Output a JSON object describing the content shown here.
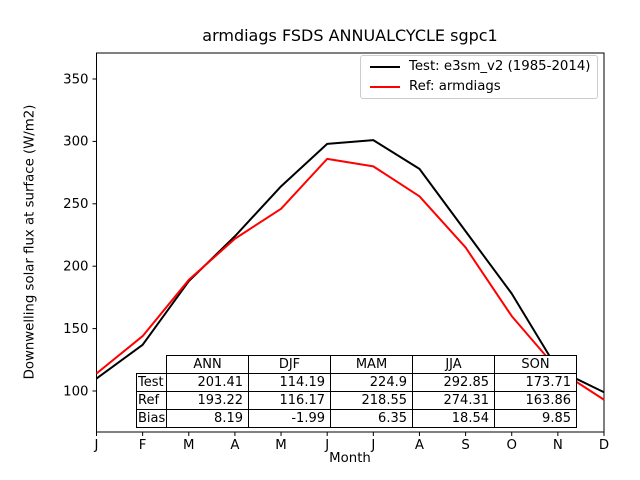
{
  "figure": {
    "title": "armdiags FSDS ANNUALCYCLE sgpc1",
    "xlabel": "Month",
    "ylabel": "Downwelling solar flux at surface (W/m2)"
  },
  "chart_data": {
    "type": "line",
    "title": "armdiags FSDS ANNUALCYCLE sgpc1",
    "xlabel": "Month",
    "ylabel": "Downwelling solar flux at surface (W/m2)",
    "x_ticklabels": [
      "J",
      "F",
      "M",
      "A",
      "M",
      "J",
      "J",
      "A",
      "S",
      "O",
      "N",
      "D"
    ],
    "y_ticks": [
      100,
      150,
      200,
      250,
      300,
      350
    ],
    "ylim": [
      67,
      371
    ],
    "grid": false,
    "legend_position": "upper right",
    "series": [
      {
        "name": "Test: e3sm_v2 (1985-2014)",
        "color": "#000000",
        "values": [
          110,
          137,
          188,
          224,
          264,
          298,
          301,
          278,
          228,
          178,
          117,
          99
        ]
      },
      {
        "name": "Ref: armdiags",
        "color": "#ff0000",
        "values": [
          114,
          144,
          189,
          222,
          246,
          286,
          280,
          256,
          215,
          160,
          117,
          93
        ]
      }
    ],
    "table": {
      "col_headers": [
        "ANN",
        "DJF",
        "MAM",
        "JJA",
        "SON"
      ],
      "row_headers": [
        "Test",
        "Ref",
        "Bias"
      ],
      "rows": [
        [
          "201.41",
          "114.19",
          "224.9",
          "292.85",
          "173.71"
        ],
        [
          "193.22",
          "116.17",
          "218.55",
          "274.31",
          "163.86"
        ],
        [
          "8.19",
          "-1.99",
          "6.35",
          "18.54",
          "9.85"
        ]
      ]
    }
  }
}
